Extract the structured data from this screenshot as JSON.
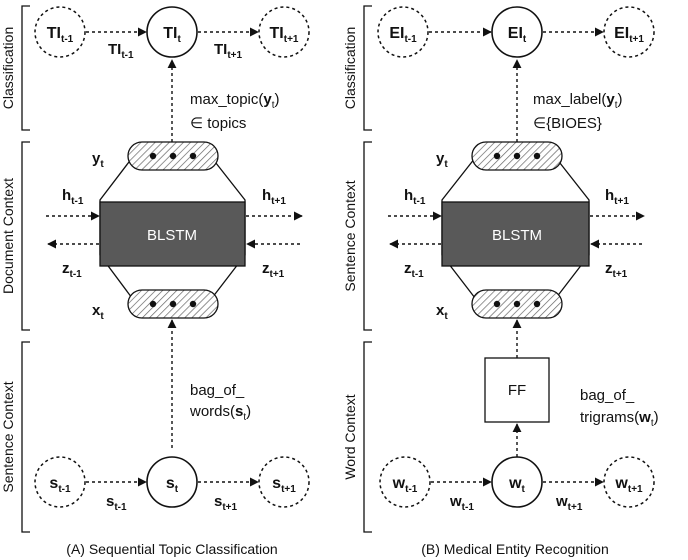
{
  "panels": [
    {
      "caption": "(A) Sequential Topic Classification",
      "section_labels": {
        "top": "Classification",
        "middle": "Document Context",
        "bottom": "Sentence Context"
      },
      "top": {
        "prev": "TI",
        "cur": "TI",
        "next": "TI",
        "prev_sub": "t-1",
        "cur_sub": "t",
        "next_sub": "t+1",
        "arrow_left": "TI",
        "arrow_left_sub": "t-1",
        "arrow_right": "TI",
        "arrow_right_sub": "t+1"
      },
      "out_line1_pre": "max_topic(",
      "out_line1_bold": "y",
      "out_line1_sub": "t",
      "out_line1_post": ")",
      "out_line2": "∈ topics",
      "blstm": "BLSTM",
      "y": "y",
      "y_sub": "t",
      "x": "x",
      "x_sub": "t",
      "h_left": "h",
      "h_left_sub": "t-1",
      "h_right": "h",
      "h_right_sub": "t+1",
      "z_left": "z",
      "z_left_sub": "t-1",
      "z_right": "z",
      "z_right_sub": "t+1",
      "in_line1": "bag_of_",
      "in_line2_pre": "words(",
      "in_line2_bold": "s",
      "in_line2_sub": "t",
      "in_line2_post": ")",
      "bottom": {
        "prev": "s",
        "cur": "s",
        "next": "s",
        "prev_sub": "t-1",
        "cur_sub": "t",
        "next_sub": "t+1",
        "arrow_left": "s",
        "arrow_left_sub": "t-1",
        "arrow_right": "s",
        "arrow_right_sub": "t+1"
      }
    },
    {
      "caption": "(B) Medical Entity Recognition",
      "section_labels": {
        "top": "Classification",
        "middle": "Sentence Context",
        "bottom": "Word Context"
      },
      "top": {
        "prev": "EI",
        "cur": "EI",
        "next": "EI",
        "prev_sub": "t-1",
        "cur_sub": "t",
        "next_sub": "t+1"
      },
      "out_line1_pre": "max_label(",
      "out_line1_bold": "y",
      "out_line1_sub": "t",
      "out_line1_post": ")",
      "out_line2": "∈{BIOES}",
      "blstm": "BLSTM",
      "ff": "FF",
      "y": "y",
      "y_sub": "t",
      "x": "x",
      "x_sub": "t",
      "h_left": "h",
      "h_left_sub": "t-1",
      "h_right": "h",
      "h_right_sub": "t+1",
      "z_left": "z",
      "z_left_sub": "t-1",
      "z_right": "z",
      "z_right_sub": "t+1",
      "in_line1": "bag_of_",
      "in_line2_pre": "trigrams(",
      "in_line2_bold": "w",
      "in_line2_sub": "t",
      "in_line2_post": ")",
      "bottom": {
        "prev": "w",
        "cur": "w",
        "next": "w",
        "prev_sub": "t-1",
        "cur_sub": "t",
        "next_sub": "t+1",
        "arrow_left": "w",
        "arrow_left_sub": "t-1",
        "arrow_right": "w",
        "arrow_right_sub": "t+1"
      }
    }
  ],
  "colors": {
    "blstm_fill": "#595959",
    "stroke": "#111111"
  }
}
